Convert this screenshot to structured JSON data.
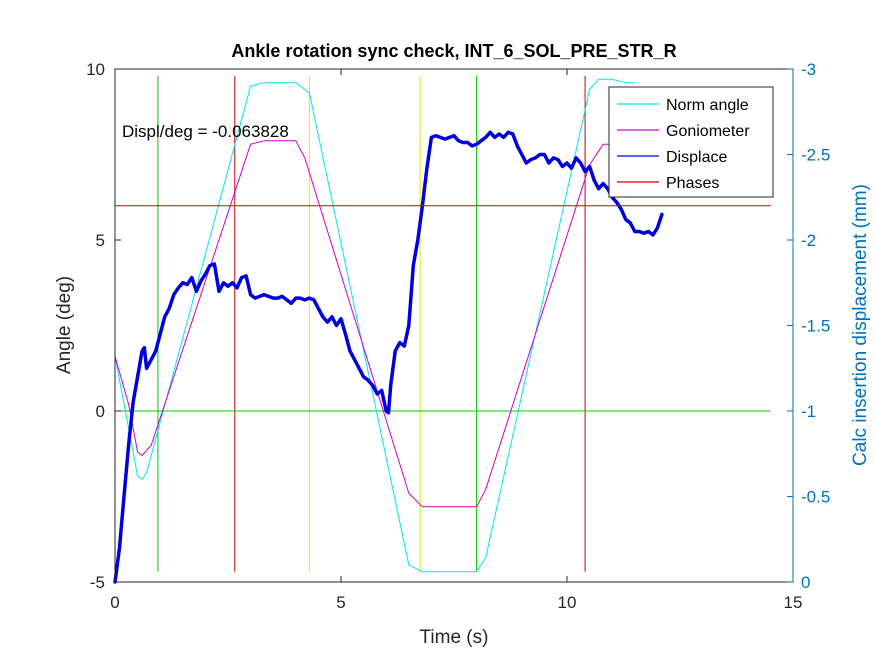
{
  "chart_data": {
    "type": "line",
    "title": "Ankle rotation sync check, INT_6_SOL_PRE_STR_R",
    "xlabel": "Time (s)",
    "ylabel_left": "Angle (deg)",
    "ylabel_right": "Calc insertion displacement (mm)",
    "xlim": [
      0,
      15
    ],
    "ylim_left": [
      -5,
      10
    ],
    "ylim_right": [
      0,
      -3
    ],
    "right_axis_reversed": true,
    "x_ticks": [
      "0",
      "5",
      "10",
      "15"
    ],
    "y_ticks_left": [
      "-5",
      "0",
      "5",
      "10"
    ],
    "y_ticks_right": [
      "0",
      "-0.5",
      "-1",
      "-1.5",
      "-2",
      "-2.5",
      "-3"
    ],
    "annotation": "Displ/deg = -0.063828",
    "legend_position": "top-right",
    "legend": [
      "Norm angle",
      "Goniometer",
      "Displace",
      "Phases"
    ],
    "series": [
      {
        "name": "Norm angle",
        "color": "#00E5EE",
        "axis": "left",
        "x": [
          0,
          0.3,
          0.5,
          0.6,
          0.7,
          3.0,
          3.3,
          3.7,
          4.0,
          4.3,
          6.5,
          6.8,
          7.0,
          7.5,
          8.0,
          8.2,
          10.5,
          10.7,
          11.0,
          11.3,
          11.5
        ],
        "y": [
          1.6,
          -0.5,
          -1.9,
          -2.0,
          -1.8,
          9.5,
          9.6,
          9.6,
          9.6,
          9.3,
          -4.5,
          -4.7,
          -4.7,
          -4.7,
          -4.7,
          -4.3,
          9.4,
          9.7,
          9.7,
          9.6,
          9.6
        ]
      },
      {
        "name": "Goniometer",
        "color": "#CC00CC",
        "axis": "left",
        "x": [
          0,
          0.3,
          0.5,
          0.6,
          0.8,
          3.0,
          3.3,
          3.6,
          4.0,
          4.2,
          6.5,
          6.8,
          7.0,
          7.5,
          8.0,
          8.2,
          10.5,
          10.8,
          11.0
        ],
        "y": [
          1.6,
          0.2,
          -1.2,
          -1.3,
          -1.0,
          7.8,
          7.9,
          7.9,
          7.9,
          7.4,
          -2.4,
          -2.8,
          -2.8,
          -2.8,
          -2.8,
          -2.3,
          7.2,
          7.8,
          7.8
        ]
      },
      {
        "name": "Displace",
        "color": "#0000DD",
        "axis": "right",
        "x": [
          0,
          0.1,
          0.2,
          0.3,
          0.4,
          0.5,
          0.6,
          0.65,
          0.7,
          0.8,
          0.9,
          1.0,
          1.1,
          1.2,
          1.3,
          1.4,
          1.5,
          1.6,
          1.7,
          1.8,
          1.9,
          2.0,
          2.1,
          2.2,
          2.3,
          2.4,
          2.5,
          2.6,
          2.7,
          2.8,
          2.9,
          3.0,
          3.1,
          3.2,
          3.3,
          3.4,
          3.5,
          3.6,
          3.7,
          3.8,
          3.9,
          4.0,
          4.1,
          4.2,
          4.3,
          4.4,
          4.5,
          4.6,
          4.7,
          4.8,
          4.9,
          5.0,
          5.1,
          5.2,
          5.3,
          5.4,
          5.5,
          5.6,
          5.7,
          5.8,
          5.9,
          6.0,
          6.05,
          6.1,
          6.2,
          6.3,
          6.4,
          6.5,
          6.6,
          6.7,
          6.8,
          6.9,
          7.0,
          7.1,
          7.2,
          7.3,
          7.4,
          7.5,
          7.6,
          7.7,
          7.8,
          7.9,
          8.0,
          8.1,
          8.2,
          8.3,
          8.4,
          8.5,
          8.6,
          8.7,
          8.8,
          8.9,
          9.0,
          9.1,
          9.2,
          9.3,
          9.4,
          9.5,
          9.6,
          9.7,
          9.8,
          9.9,
          10.0,
          10.1,
          10.2,
          10.3,
          10.4,
          10.5,
          10.6,
          10.7,
          10.8,
          10.9,
          11.0,
          11.1,
          11.2,
          11.3,
          11.4,
          11.5,
          11.6,
          11.7,
          11.8,
          11.9,
          12.0,
          12.1
        ],
        "y": [
          0.0,
          -0.2,
          -0.5,
          -0.8,
          -1.05,
          -1.2,
          -1.35,
          -1.37,
          -1.25,
          -1.3,
          -1.35,
          -1.45,
          -1.55,
          -1.6,
          -1.68,
          -1.72,
          -1.75,
          -1.74,
          -1.78,
          -1.7,
          -1.76,
          -1.8,
          -1.85,
          -1.86,
          -1.7,
          -1.75,
          -1.73,
          -1.75,
          -1.72,
          -1.78,
          -1.79,
          -1.68,
          -1.66,
          -1.67,
          -1.68,
          -1.67,
          -1.66,
          -1.66,
          -1.67,
          -1.65,
          -1.63,
          -1.66,
          -1.66,
          -1.65,
          -1.66,
          -1.65,
          -1.6,
          -1.55,
          -1.52,
          -1.55,
          -1.5,
          -1.54,
          -1.45,
          -1.35,
          -1.3,
          -1.25,
          -1.2,
          -1.18,
          -1.15,
          -1.1,
          -1.12,
          -1.0,
          -0.99,
          -1.15,
          -1.35,
          -1.4,
          -1.38,
          -1.5,
          -1.85,
          -2.0,
          -2.2,
          -2.42,
          -2.6,
          -2.61,
          -2.6,
          -2.59,
          -2.6,
          -2.61,
          -2.58,
          -2.57,
          -2.57,
          -2.55,
          -2.56,
          -2.58,
          -2.6,
          -2.63,
          -2.6,
          -2.62,
          -2.6,
          -2.63,
          -2.62,
          -2.55,
          -2.5,
          -2.45,
          -2.47,
          -2.48,
          -2.5,
          -2.5,
          -2.45,
          -2.48,
          -2.47,
          -2.43,
          -2.45,
          -2.42,
          -2.48,
          -2.45,
          -2.4,
          -2.43,
          -2.35,
          -2.3,
          -2.33,
          -2.3,
          -2.25,
          -2.22,
          -2.18,
          -2.12,
          -2.1,
          -2.05,
          -2.05,
          -2.04,
          -2.05,
          -2.03,
          -2.07,
          -2.15
        ]
      },
      {
        "name": "Phases",
        "color": "#CC0000",
        "axis": "left",
        "x": [
          0,
          14.5
        ],
        "y": [
          6,
          6
        ]
      }
    ],
    "hlines_left": [
      {
        "y": 0,
        "color": "#00CC00"
      }
    ],
    "vlines": [
      {
        "x": 0.95,
        "color": "#00CC00"
      },
      {
        "x": 2.65,
        "color": "#CC0000"
      },
      {
        "x": 4.3,
        "color": "#E6E600"
      },
      {
        "x": 6.75,
        "color": "#E6E600"
      },
      {
        "x": 8.0,
        "color": "#00CC00"
      },
      {
        "x": 10.4,
        "color": "#CC0000"
      }
    ],
    "vline_ylim": [
      -4.7,
      9.8
    ],
    "hline_xlim": [
      0,
      14.5
    ]
  }
}
